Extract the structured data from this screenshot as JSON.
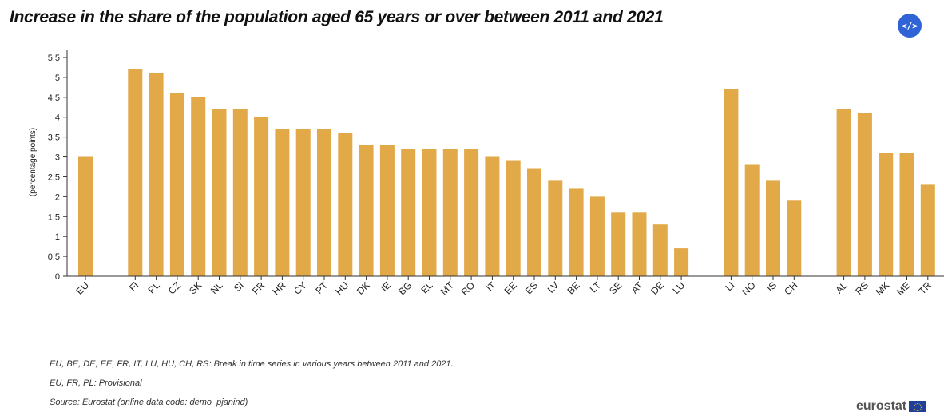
{
  "title": "Increase in the share of the population aged 65 years or over between 2011 and 2021",
  "embed_button": {
    "label": "</>"
  },
  "colors": {
    "bar": "#E1A948",
    "axis": "#333333",
    "tick_text": "#222222"
  },
  "chart_data": {
    "type": "bar",
    "ylabel": "(percentage points)",
    "ylim": [
      0,
      5.5
    ],
    "yticks": [
      "0",
      "0.5",
      "1",
      "1.5",
      "2",
      "2.5",
      "3",
      "3.5",
      "4",
      "4.5",
      "5",
      "5.5"
    ],
    "grid": false,
    "groups": [
      {
        "categories": [
          "EU"
        ],
        "values": [
          3.0
        ]
      },
      {
        "categories": [
          "FI",
          "PL",
          "CZ",
          "SK",
          "NL",
          "SI",
          "FR",
          "HR",
          "CY",
          "PT",
          "HU",
          "DK",
          "IE",
          "BG",
          "EL",
          "MT",
          "RO",
          "IT",
          "EE",
          "ES",
          "LV",
          "BE",
          "LT",
          "SE",
          "AT",
          "DE",
          "LU"
        ],
        "values": [
          5.2,
          5.1,
          4.6,
          4.5,
          4.2,
          4.2,
          4.0,
          3.7,
          3.7,
          3.7,
          3.6,
          3.3,
          3.3,
          3.2,
          3.2,
          3.2,
          3.2,
          3.0,
          2.9,
          2.7,
          2.4,
          2.2,
          2.0,
          1.6,
          1.6,
          1.3,
          0.7
        ]
      },
      {
        "categories": [
          "LI",
          "NO",
          "IS",
          "CH"
        ],
        "values": [
          4.7,
          2.8,
          2.4,
          1.9
        ]
      },
      {
        "categories": [
          "AL",
          "RS",
          "MK",
          "ME",
          "TR"
        ],
        "values": [
          4.2,
          4.1,
          3.1,
          3.1,
          2.3
        ]
      }
    ]
  },
  "notes": [
    "EU, BE, DE, EE, FR, IT, LU, HU, CH, RS: Break in time series in various years between 2011 and 2021.",
    "EU, FR, PL: Provisional",
    "Source: Eurostat (online data code: demo_pjanind)"
  ],
  "brand": "eurostat"
}
